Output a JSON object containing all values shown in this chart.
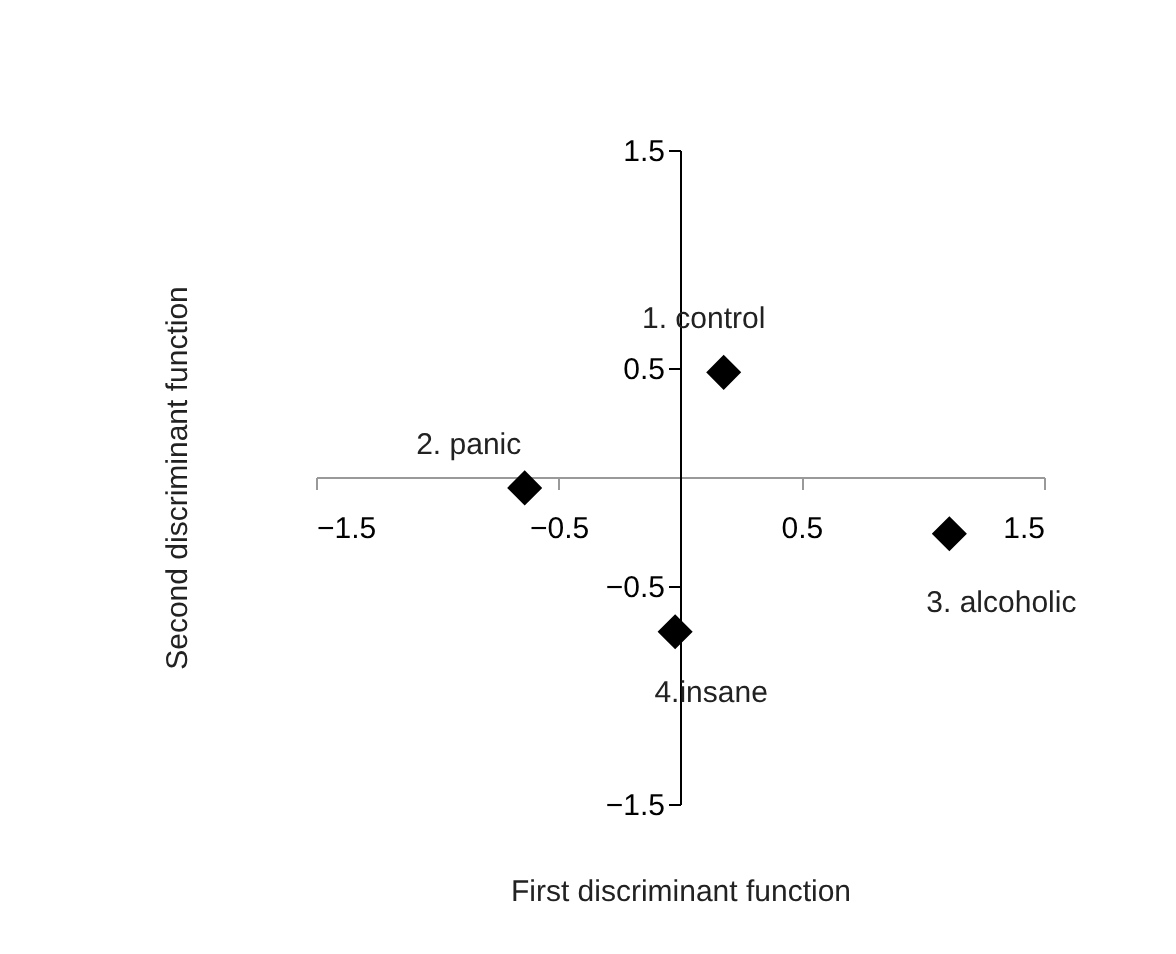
{
  "chart_data": {
    "type": "scatter",
    "xlabel": "First discriminant function",
    "ylabel": "Second discriminant function",
    "x": [
      0.18,
      -0.64,
      1.11,
      -0.02
    ],
    "series": [
      {
        "color": "#000000",
        "values": [
          0.48,
          -0.05,
          -0.26,
          -0.71
        ]
      }
    ],
    "xlim": [
      -1.5,
      1.5
    ],
    "ylim": [
      -1.5,
      1.5
    ],
    "xticks": [
      -1.5,
      -0.5,
      0.5,
      1.5
    ],
    "yticks": [
      -1.5,
      -0.5,
      0.5,
      1.5
    ],
    "marker": "diamond",
    "grid": false,
    "legend": false,
    "annotations": [
      {
        "text": "1. control",
        "x": 0.18,
        "y": 0.48
      },
      {
        "text": "2. panic",
        "x": -0.64,
        "y": -0.05
      },
      {
        "text": "3. alcoholic",
        "x": 1.11,
        "y": -0.26
      },
      {
        "text": "4.insane",
        "x": -0.02,
        "y": -0.71
      }
    ]
  }
}
